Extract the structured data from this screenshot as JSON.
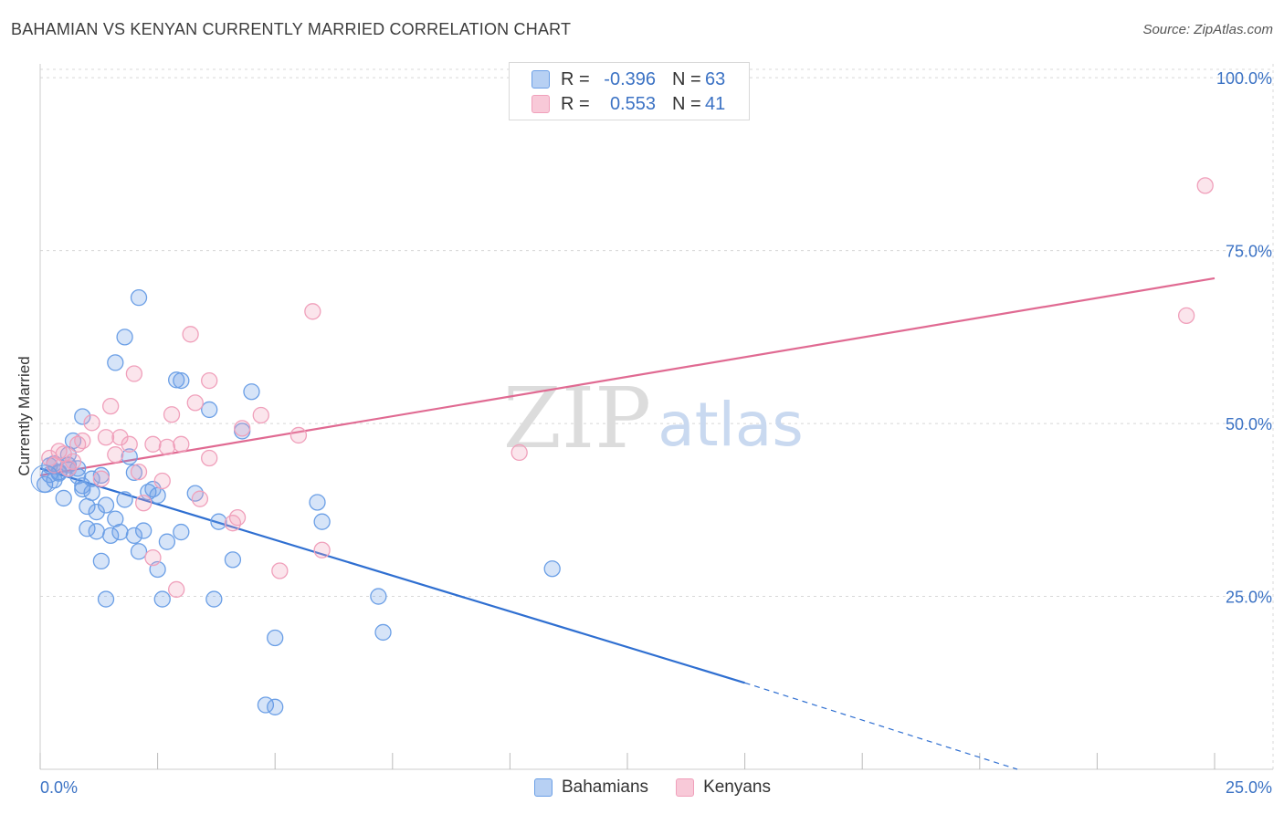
{
  "header": {
    "title": "BAHAMIAN VS KENYAN CURRENTLY MARRIED CORRELATION CHART",
    "source": "Source: ZipAtlas.com"
  },
  "watermark": {
    "zip": "ZIP",
    "atlas": "atlas"
  },
  "legend": {
    "r_label": "R =",
    "n_label": "N =",
    "rows": [
      {
        "name": "Bahamians",
        "r": "-0.396",
        "n": "63",
        "color": "#6b9fe6"
      },
      {
        "name": "Kenyans",
        "r": "0.553",
        "n": "41",
        "color": "#f0a0bb"
      }
    ]
  },
  "chart_data": {
    "type": "scatter",
    "title": "BAHAMIAN VS KENYAN CURRENTLY MARRIED CORRELATION CHART",
    "xlabel": "",
    "ylabel": "Currently Married",
    "xlim": [
      0,
      25
    ],
    "ylim": [
      0,
      102
    ],
    "x_tick_labels": [
      "0.0%",
      "25.0%"
    ],
    "y_ticks": [
      25,
      50,
      75,
      100
    ],
    "y_tick_labels": [
      "25.0%",
      "50.0%",
      "75.0%",
      "100.0%"
    ],
    "grid": true,
    "series": [
      {
        "name": "Bahamians",
        "color": "#6b9fe6",
        "line_color": "#2f6fd1",
        "trend": {
          "x0": 0.0,
          "y0": 43.5,
          "x1": 15.0,
          "y1": 12.5,
          "dash_to_x": 20.8,
          "dash_to_y": 0
        },
        "points": [
          [
            0.1,
            41.2
          ],
          [
            0.2,
            43.9
          ],
          [
            0.3,
            41.8
          ],
          [
            0.4,
            43.0
          ],
          [
            0.5,
            39.2
          ],
          [
            0.6,
            45.5
          ],
          [
            0.6,
            43.4
          ],
          [
            0.7,
            47.5
          ],
          [
            0.8,
            42.4
          ],
          [
            0.9,
            41.0
          ],
          [
            0.9,
            51.0
          ],
          [
            1.0,
            38.0
          ],
          [
            1.0,
            34.8
          ],
          [
            1.1,
            40.0
          ],
          [
            1.2,
            37.2
          ],
          [
            1.2,
            34.4
          ],
          [
            1.3,
            30.1
          ],
          [
            1.3,
            42.5
          ],
          [
            1.4,
            38.2
          ],
          [
            1.4,
            24.6
          ],
          [
            1.5,
            33.8
          ],
          [
            1.6,
            36.2
          ],
          [
            1.7,
            34.3
          ],
          [
            1.8,
            39.0
          ],
          [
            1.8,
            62.5
          ],
          [
            1.6,
            58.8
          ],
          [
            1.9,
            45.2
          ],
          [
            2.0,
            33.8
          ],
          [
            2.0,
            42.9
          ],
          [
            2.1,
            68.2
          ],
          [
            2.1,
            31.5
          ],
          [
            2.2,
            34.5
          ],
          [
            2.3,
            40.1
          ],
          [
            2.4,
            40.5
          ],
          [
            2.5,
            39.6
          ],
          [
            2.5,
            28.9
          ],
          [
            2.6,
            24.6
          ],
          [
            2.7,
            32.9
          ],
          [
            2.9,
            56.3
          ],
          [
            3.0,
            56.2
          ],
          [
            3.0,
            34.3
          ],
          [
            3.3,
            39.9
          ],
          [
            3.6,
            52.0
          ],
          [
            3.7,
            24.6
          ],
          [
            3.8,
            35.8
          ],
          [
            4.1,
            30.3
          ],
          [
            4.3,
            48.9
          ],
          [
            4.5,
            54.6
          ],
          [
            4.8,
            9.3
          ],
          [
            5.0,
            9.0
          ],
          [
            5.0,
            19.0
          ],
          [
            5.9,
            38.6
          ],
          [
            6.0,
            35.8
          ],
          [
            7.2,
            25.0
          ],
          [
            7.3,
            19.8
          ],
          [
            10.9,
            29.0
          ],
          [
            0.4,
            42.8
          ],
          [
            0.8,
            43.5
          ],
          [
            1.1,
            42.0
          ],
          [
            0.3,
            44.2
          ],
          [
            0.2,
            42.6
          ],
          [
            0.6,
            44.0
          ],
          [
            0.9,
            40.5
          ]
        ]
      },
      {
        "name": "Kenyans",
        "color": "#f0a0bb",
        "line_color": "#e06a92",
        "trend": {
          "x0": 0.0,
          "y0": 42.5,
          "x1": 25.0,
          "y1": 71.0
        },
        "points": [
          [
            0.2,
            45.0
          ],
          [
            0.3,
            44.0
          ],
          [
            0.4,
            46.0
          ],
          [
            0.5,
            45.6
          ],
          [
            0.6,
            43.5
          ],
          [
            0.7,
            44.5
          ],
          [
            0.8,
            47.0
          ],
          [
            0.9,
            47.5
          ],
          [
            1.1,
            50.1
          ],
          [
            1.3,
            42.0
          ],
          [
            1.4,
            48.0
          ],
          [
            1.5,
            52.5
          ],
          [
            1.6,
            45.5
          ],
          [
            1.7,
            48.0
          ],
          [
            1.9,
            47.0
          ],
          [
            2.0,
            57.2
          ],
          [
            2.1,
            43.0
          ],
          [
            2.2,
            38.5
          ],
          [
            2.4,
            47.0
          ],
          [
            2.4,
            30.6
          ],
          [
            2.6,
            41.7
          ],
          [
            2.7,
            46.6
          ],
          [
            2.8,
            51.3
          ],
          [
            2.9,
            26.0
          ],
          [
            3.0,
            47.0
          ],
          [
            3.2,
            62.9
          ],
          [
            3.3,
            53.0
          ],
          [
            3.4,
            39.1
          ],
          [
            3.6,
            45.0
          ],
          [
            3.6,
            56.2
          ],
          [
            4.1,
            35.6
          ],
          [
            4.2,
            36.4
          ],
          [
            4.3,
            49.3
          ],
          [
            4.7,
            51.2
          ],
          [
            5.1,
            28.7
          ],
          [
            5.5,
            48.3
          ],
          [
            5.8,
            66.2
          ],
          [
            6.0,
            31.7
          ],
          [
            10.2,
            45.8
          ],
          [
            24.4,
            65.6
          ],
          [
            24.8,
            84.4
          ]
        ]
      }
    ]
  }
}
